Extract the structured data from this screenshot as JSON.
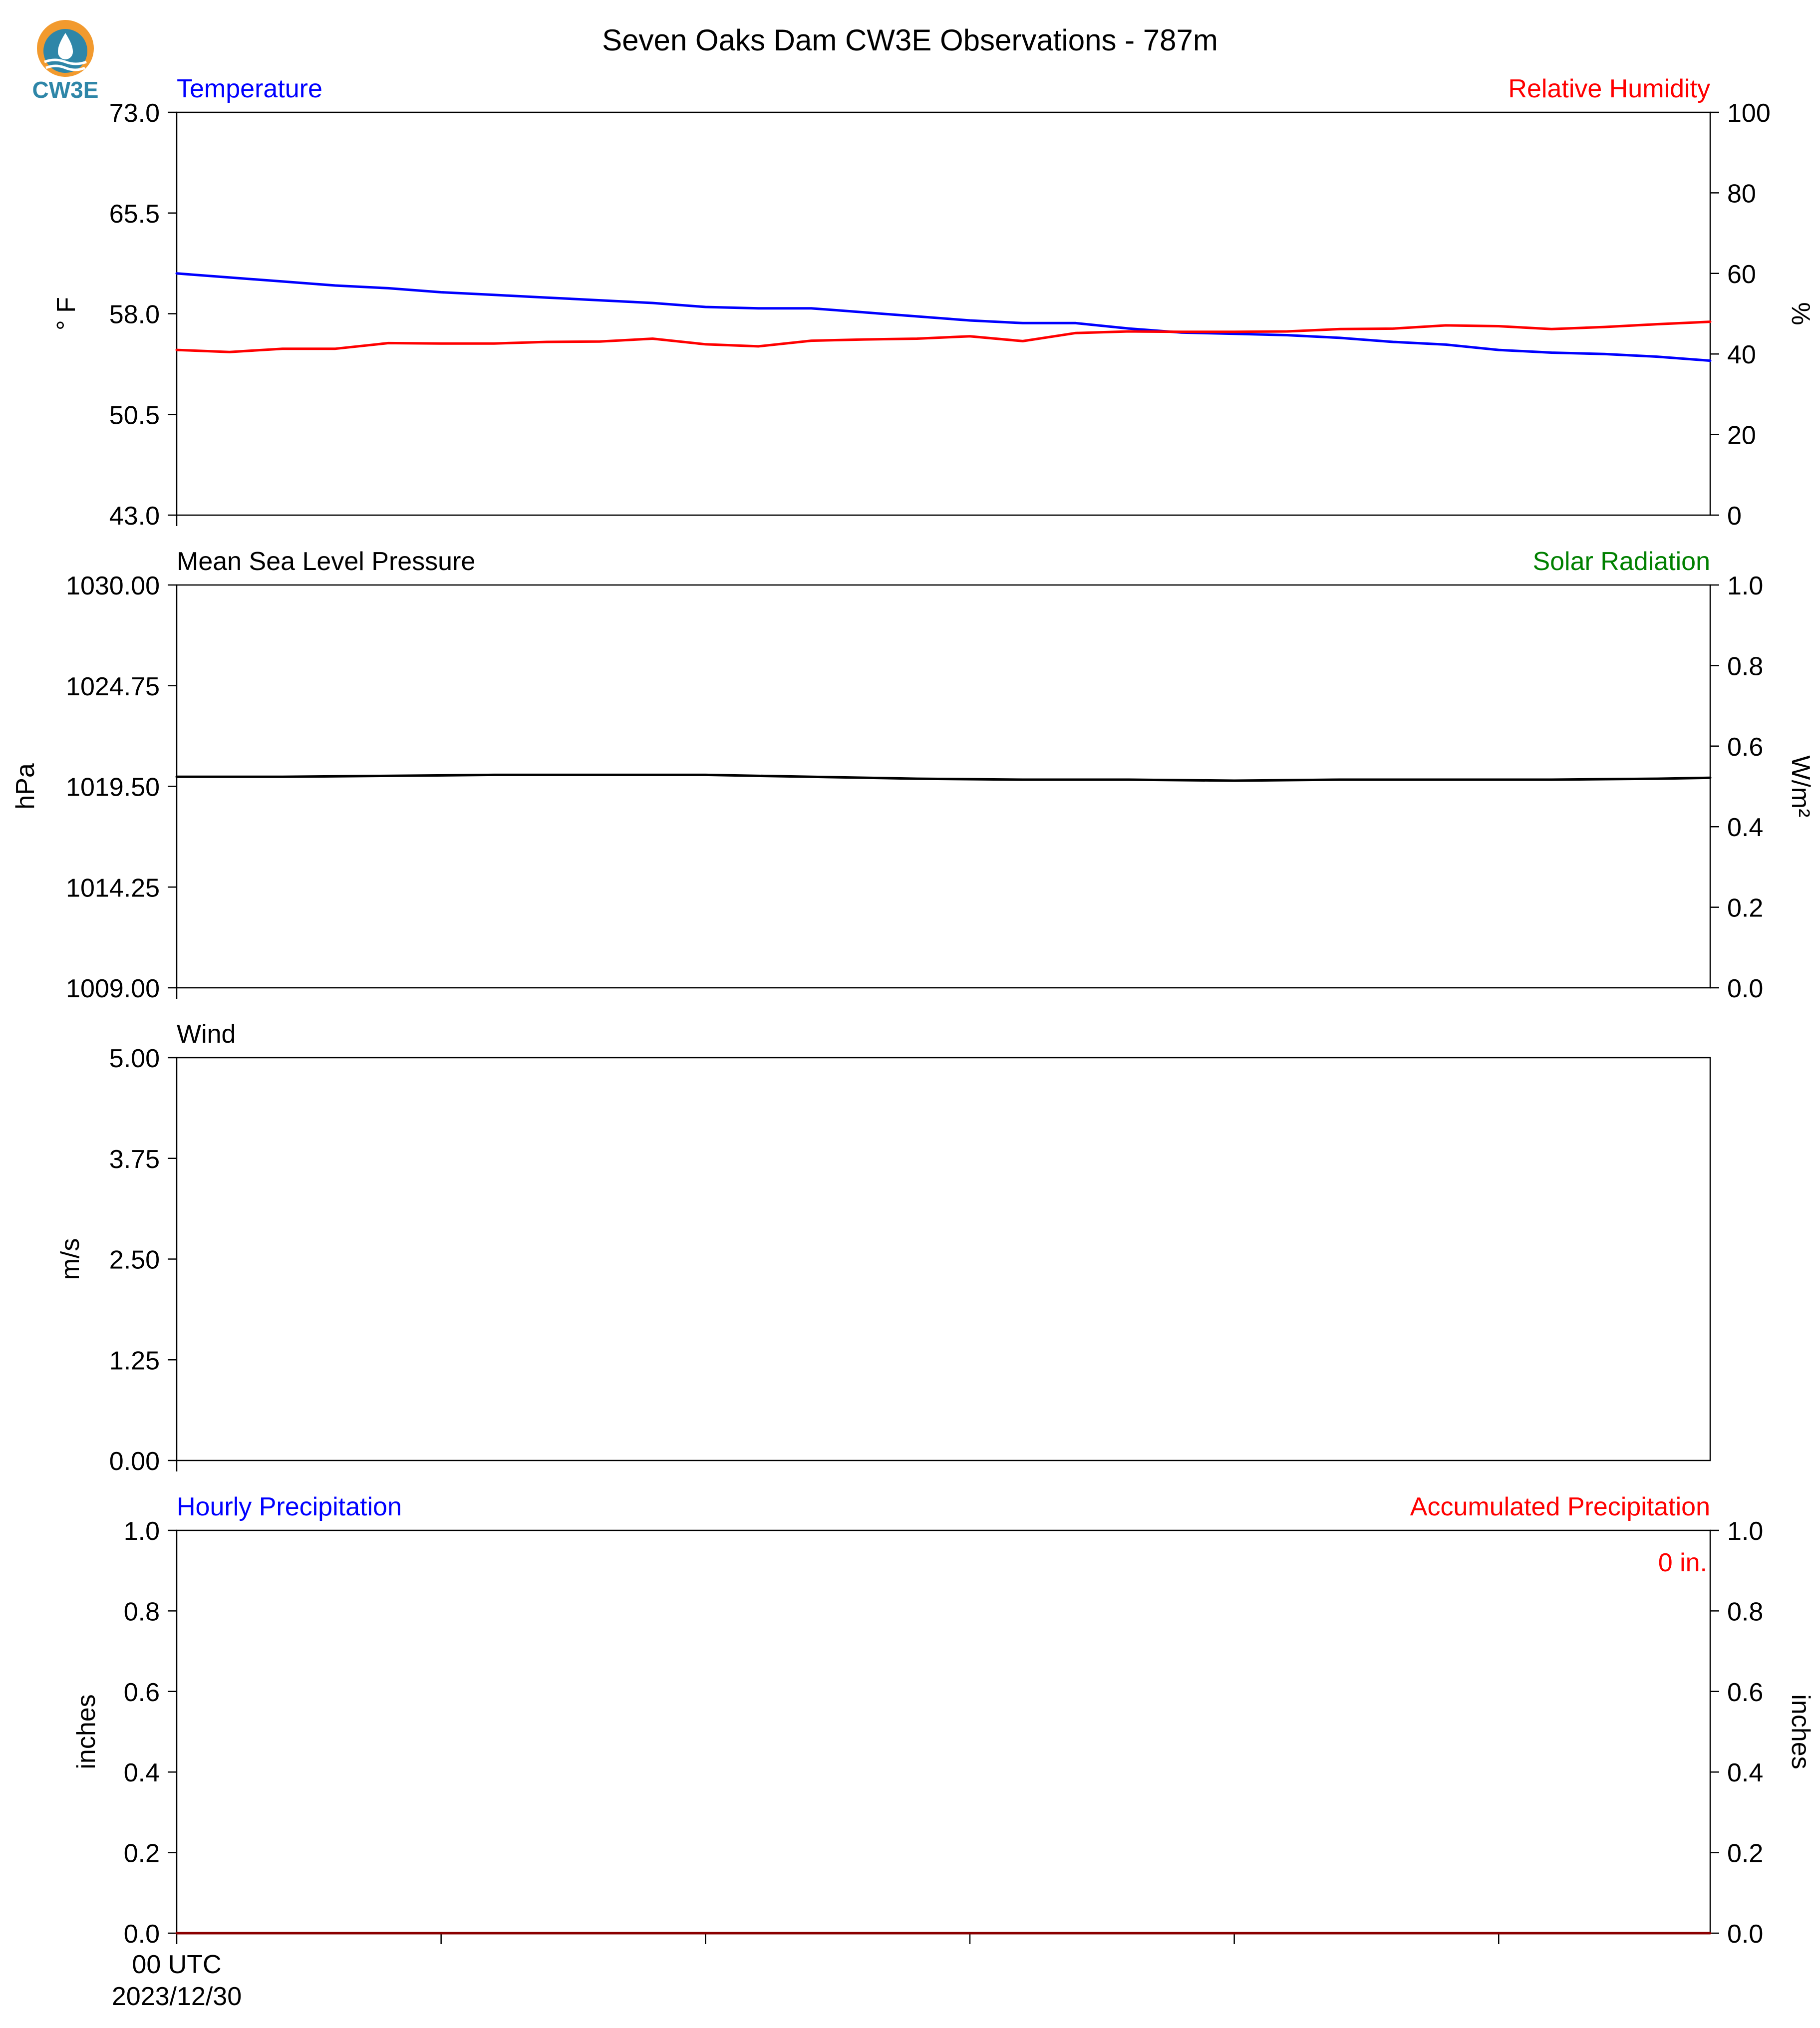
{
  "title": "Seven Oaks Dam CW3E Observations - 787m",
  "logo": {
    "text": "CW3E",
    "icon": "cw3e-water-drop-logo",
    "colors": {
      "orange": "#f29a2e",
      "teal": "#2e86a8"
    }
  },
  "colors": {
    "blue": "#0000ff",
    "red": "#ff0000",
    "green": "#008000",
    "black": "#000000",
    "darkred": "#8b0000"
  },
  "chart_data": [
    {
      "type": "line",
      "panel": "temperature-humidity",
      "left_title": "Temperature",
      "right_title": "Relative Humidity",
      "ylabel_left": "° F",
      "ylabel_right": "%",
      "ylim_left": [
        43.0,
        73.0
      ],
      "ylim_right": [
        0,
        100
      ],
      "yticks_left": [
        "43.0",
        "50.5",
        "58.0",
        "65.5",
        "73.0"
      ],
      "yticks_right": [
        "0",
        "20",
        "40",
        "60",
        "80",
        "100"
      ],
      "xlim": [
        0,
        29
      ],
      "series": [
        {
          "name": "Temperature",
          "axis": "left",
          "color": "#0000ff",
          "x": [
            0,
            1,
            2,
            3,
            4,
            5,
            6,
            7,
            8,
            9,
            10,
            11,
            12,
            13,
            14,
            15,
            16,
            17,
            18,
            19,
            20,
            21,
            22,
            23,
            24,
            25,
            26,
            27,
            28,
            29
          ],
          "values": [
            61.0,
            60.7,
            60.4,
            60.1,
            59.9,
            59.6,
            59.4,
            59.2,
            59.0,
            58.8,
            58.5,
            58.4,
            58.4,
            58.1,
            57.8,
            57.5,
            57.3,
            57.3,
            56.9,
            56.6,
            56.5,
            56.4,
            56.2,
            55.9,
            55.7,
            55.3,
            55.1,
            55.0,
            54.8,
            54.5
          ]
        },
        {
          "name": "Relative Humidity",
          "axis": "right",
          "color": "#ff0000",
          "x": [
            0,
            1,
            2,
            3,
            4,
            5,
            6,
            7,
            8,
            9,
            10,
            11,
            12,
            13,
            14,
            15,
            16,
            17,
            18,
            19,
            20,
            21,
            22,
            23,
            24,
            25,
            26,
            27,
            28,
            29
          ],
          "values": [
            41.0,
            40.5,
            41.3,
            41.3,
            42.7,
            42.6,
            42.6,
            43.0,
            43.1,
            43.8,
            42.4,
            41.9,
            43.3,
            43.6,
            43.8,
            44.4,
            43.2,
            45.2,
            45.6,
            45.5,
            45.5,
            45.6,
            46.2,
            46.3,
            47.1,
            46.9,
            46.2,
            46.7,
            47.4,
            48.0
          ]
        }
      ]
    },
    {
      "type": "line",
      "panel": "pressure-solar",
      "left_title": "Mean Sea Level Pressure",
      "right_title": "Solar Radiation",
      "ylabel_left": "hPa",
      "ylabel_right": "W/m²",
      "ylim_left": [
        1009.0,
        1030.0
      ],
      "ylim_right": [
        0.0,
        1.0
      ],
      "yticks_left": [
        "1009.00",
        "1014.25",
        "1019.50",
        "1024.75",
        "1030.00"
      ],
      "yticks_right": [
        "0.0",
        "0.2",
        "0.4",
        "0.6",
        "0.8",
        "1.0"
      ],
      "xlim": [
        0,
        29
      ],
      "series": [
        {
          "name": "Mean Sea Level Pressure",
          "axis": "left",
          "color": "#000000",
          "x": [
            0,
            2,
            4,
            6,
            8,
            10,
            12,
            14,
            16,
            18,
            20,
            22,
            24,
            26,
            28,
            29
          ],
          "values": [
            1020.0,
            1020.0,
            1020.05,
            1020.1,
            1020.1,
            1020.1,
            1020.0,
            1019.9,
            1019.85,
            1019.85,
            1019.8,
            1019.85,
            1019.85,
            1019.85,
            1019.9,
            1019.95
          ]
        }
      ]
    },
    {
      "type": "line",
      "panel": "wind",
      "left_title": "Wind",
      "ylabel_left": "m/s",
      "ylim_left": [
        0.0,
        5.0
      ],
      "yticks_left": [
        "0.00",
        "1.25",
        "2.50",
        "3.75",
        "5.00"
      ],
      "xlim": [
        0,
        29
      ],
      "series": []
    },
    {
      "type": "line",
      "panel": "precipitation",
      "left_title": "Hourly Precipitation",
      "right_title": "Accumulated Precipitation",
      "annotation": "0 in.",
      "ylabel_left": "inches",
      "ylabel_right": "inches",
      "ylim_left": [
        0.0,
        1.0
      ],
      "ylim_right": [
        0.0,
        1.0
      ],
      "yticks_left": [
        "0.0",
        "0.2",
        "0.4",
        "0.6",
        "0.8",
        "1.0"
      ],
      "yticks_right": [
        "0.0",
        "0.2",
        "0.4",
        "0.6",
        "0.8",
        "1.0"
      ],
      "xlim": [
        0,
        29
      ],
      "x_tick_positions": [
        0,
        5,
        10,
        15,
        20,
        25
      ],
      "x_tick_labels": [
        [
          "00 UTC",
          "2023/12/30"
        ]
      ],
      "series": [
        {
          "name": "Accumulated Precipitation",
          "axis": "right",
          "color": "#8b0000",
          "x": [
            0,
            29
          ],
          "values": [
            0.0,
            0.0
          ]
        }
      ]
    }
  ]
}
